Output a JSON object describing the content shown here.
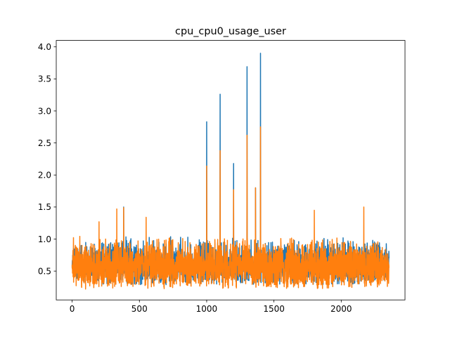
{
  "chart_data": {
    "type": "line",
    "title": "cpu_cpu0_usage_user",
    "xlabel": "",
    "ylabel": "",
    "xlim": [
      -118,
      2474
    ],
    "ylim": [
      0.05,
      4.1
    ],
    "x_ticks": [
      0,
      500,
      1000,
      1500,
      2000
    ],
    "x_tick_labels": [
      "0",
      "500",
      "1000",
      "1500",
      "2000"
    ],
    "y_ticks": [
      0.5,
      1.0,
      1.5,
      2.0,
      2.5,
      3.0,
      3.5,
      4.0
    ],
    "y_tick_labels": [
      "0.5",
      "1.0",
      "1.5",
      "2.0",
      "2.5",
      "3.0",
      "3.5",
      "4.0"
    ],
    "grid": false,
    "legend": "none",
    "n_points": 2356,
    "series": [
      {
        "color": "#1f77b4",
        "base_low": 0.28,
        "base_high": 1.05,
        "points": [
          [
            0,
            0.55
          ],
          [
            383,
            1.5
          ],
          [
            1000,
            2.83
          ],
          [
            1100,
            3.26
          ],
          [
            1200,
            2.18
          ],
          [
            1250,
            0.33
          ],
          [
            1300,
            3.69
          ],
          [
            1363,
            1.8
          ],
          [
            1400,
            3.9
          ],
          [
            1680,
            0.3
          ],
          [
            2355,
            0.7
          ]
        ]
      },
      {
        "color": "#ff7f0e",
        "base_low": 0.22,
        "base_high": 1.05,
        "points": [
          [
            0,
            0.6
          ],
          [
            100,
            0.22
          ],
          [
            200,
            1.27
          ],
          [
            332,
            1.47
          ],
          [
            383,
            1.49
          ],
          [
            550,
            1.34
          ],
          [
            1000,
            2.14
          ],
          [
            1100,
            2.38
          ],
          [
            1200,
            1.77
          ],
          [
            1300,
            2.62
          ],
          [
            1363,
            1.8
          ],
          [
            1400,
            2.75
          ],
          [
            1800,
            1.45
          ],
          [
            2168,
            1.5
          ],
          [
            2355,
            0.55
          ]
        ]
      }
    ]
  }
}
